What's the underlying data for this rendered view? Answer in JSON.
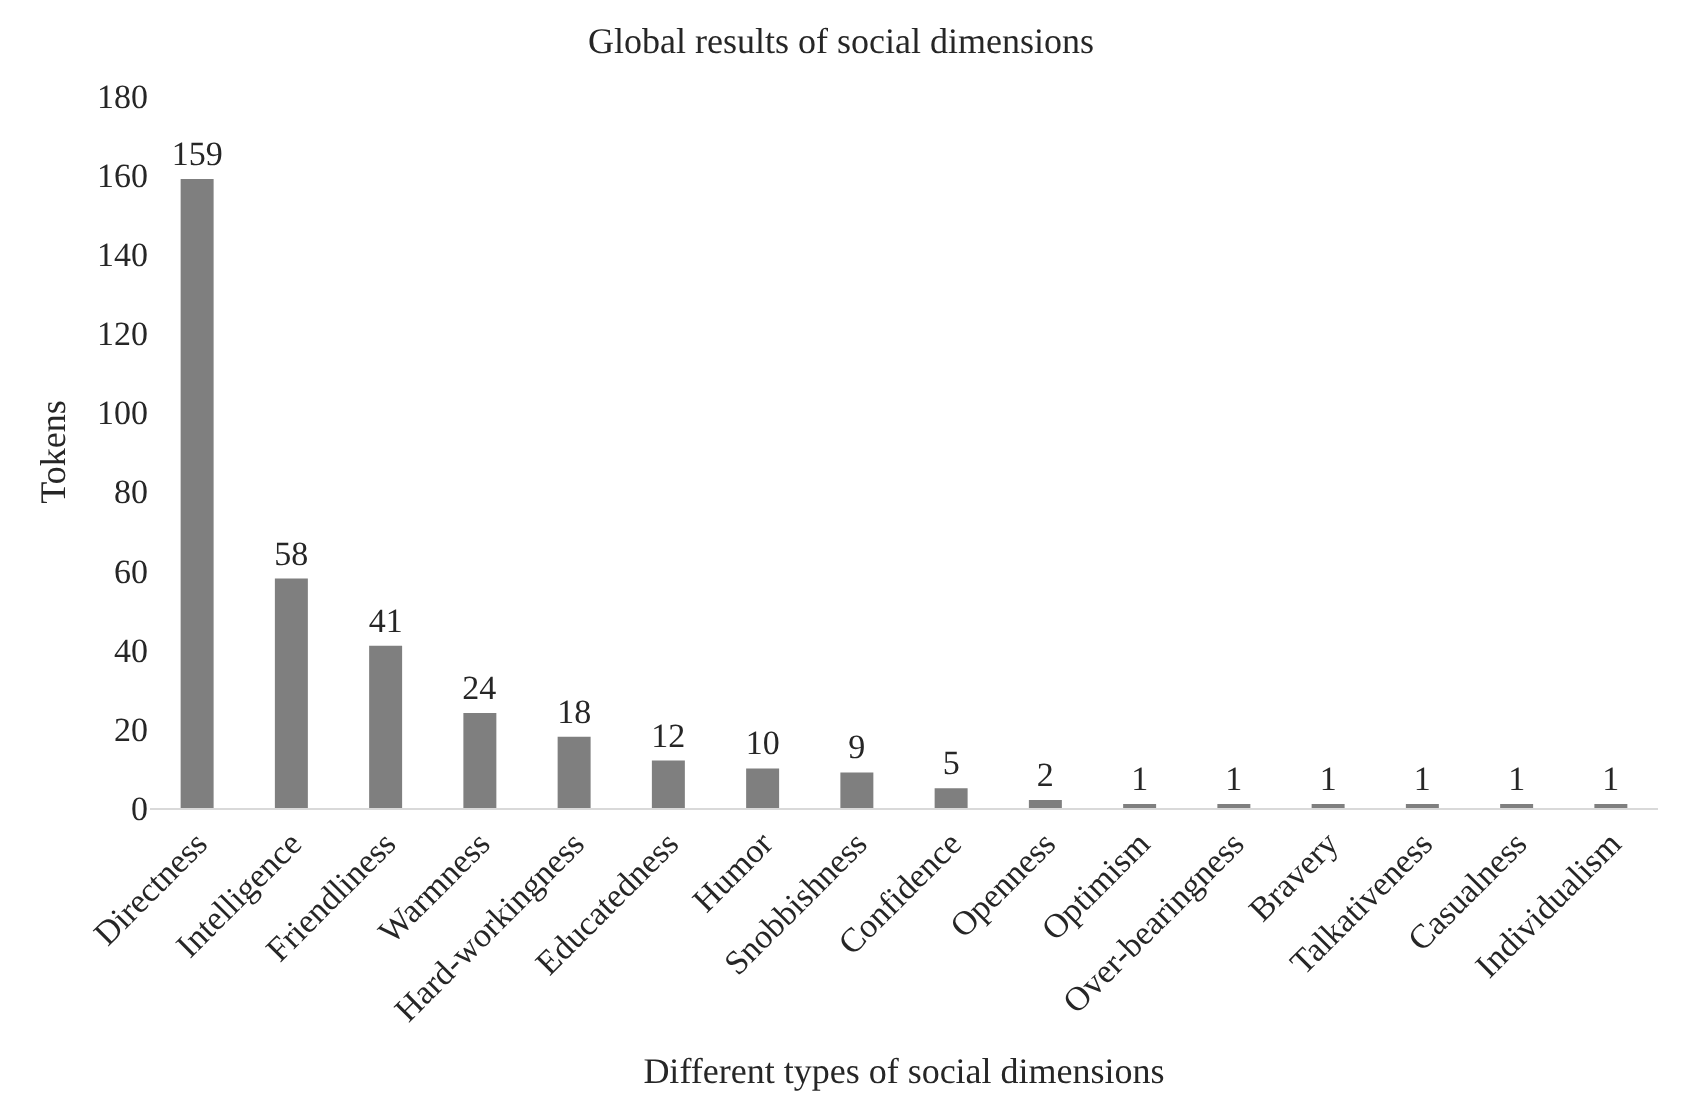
{
  "chart_data": {
    "type": "bar",
    "title": "Global results of social dimensions",
    "xlabel": "Different types of social dimensions",
    "ylabel": "Tokens",
    "categories": [
      "Directness",
      "Intelligence",
      "Friendliness",
      "Warmness",
      "Hard-workingness",
      "Educatedness",
      "Humor",
      "Snobbishness",
      "Confidence",
      "Openness",
      "Optimism",
      "Over-bearingness",
      "Bravery",
      "Talkativeness",
      "Casualness",
      "Individualism"
    ],
    "values": [
      159,
      58,
      41,
      24,
      18,
      12,
      10,
      9,
      5,
      2,
      1,
      1,
      1,
      1,
      1,
      1
    ],
    "color": "#7f7f7f",
    "ylim": [
      0,
      180
    ],
    "yticks": [
      0,
      20,
      40,
      60,
      80,
      100,
      120,
      140,
      160,
      180
    ],
    "data_labels": true
  }
}
